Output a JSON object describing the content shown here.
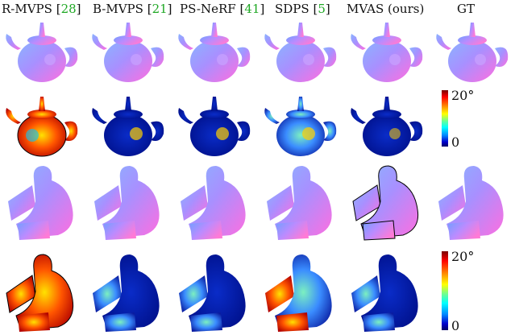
{
  "columns": [
    {
      "name": "R-MVPS",
      "cite": "28"
    },
    {
      "name": "B-MVPS",
      "cite": "21"
    },
    {
      "name": "PS-NeRF",
      "cite": "41"
    },
    {
      "name": "SDPS",
      "cite": "5"
    },
    {
      "name": "MVAS (ours)",
      "cite": ""
    },
    {
      "name": "GT",
      "cite": ""
    }
  ],
  "bracket_open": "[",
  "bracket_close": "]",
  "colorbar": {
    "max_label": "20°",
    "min_label": "0"
  },
  "colors": {
    "citation": "#1fa824",
    "text": "#111111"
  }
}
